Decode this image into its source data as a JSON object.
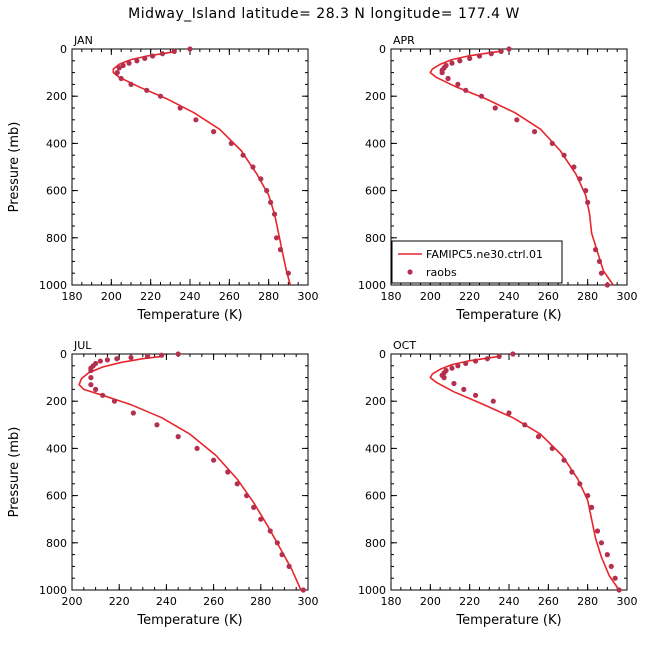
{
  "title": "Midway_Island   latitude= 28.3 N longitude= 177.4 W",
  "colors": {
    "model": "#e8252b",
    "obs": "#b5304f"
  },
  "chart_data": [
    {
      "type": "line",
      "panel": "JAN",
      "xlabel": "Temperature (K)",
      "ylabel": "Pressure (mb)",
      "xlim": [
        180,
        300
      ],
      "ylim": [
        1000,
        0
      ],
      "xticks": [
        180,
        200,
        220,
        240,
        260,
        280,
        300
      ],
      "yticks": [
        0,
        200,
        400,
        600,
        800,
        1000
      ],
      "series": [
        {
          "name": "FAMIPC5.ne30.ctrl.01",
          "style": "line",
          "color": "#e8252b",
          "x": [
            233,
            226,
            218,
            210,
            204,
            201,
            201,
            204,
            214,
            228,
            242,
            255,
            266,
            274,
            280,
            283,
            285,
            287,
            289,
            291
          ],
          "y": [
            10,
            20,
            30,
            45,
            65,
            85,
            100,
            120,
            160,
            210,
            270,
            340,
            430,
            530,
            620,
            700,
            780,
            860,
            940,
            1000
          ]
        },
        {
          "name": "raobs",
          "style": "markers",
          "color": "#b5304f",
          "x": [
            240,
            232,
            226,
            221,
            217,
            213,
            209,
            206,
            204,
            203,
            205,
            210,
            218,
            225,
            235,
            243,
            252,
            261,
            267,
            272,
            276,
            279,
            281,
            283,
            284,
            286,
            290
          ],
          "y": [
            0,
            10,
            20,
            30,
            40,
            50,
            60,
            70,
            80,
            100,
            125,
            150,
            175,
            200,
            250,
            300,
            350,
            400,
            450,
            500,
            550,
            600,
            650,
            700,
            800,
            850,
            950
          ]
        }
      ]
    },
    {
      "type": "line",
      "panel": "APR",
      "xlabel": "Temperature (K)",
      "ylabel": "",
      "xlim": [
        180,
        300
      ],
      "ylim": [
        1000,
        0
      ],
      "xticks": [
        180,
        200,
        220,
        240,
        260,
        280,
        300
      ],
      "yticks": [
        0,
        200,
        400,
        600,
        800,
        1000
      ],
      "legend": {
        "placement": "bottom-left",
        "entries": [
          "FAMIPC5.ne30.ctrl.01",
          "raobs"
        ]
      },
      "series": [
        {
          "name": "FAMIPC5.ne30.ctrl.01",
          "style": "line",
          "color": "#e8252b",
          "x": [
            235,
            227,
            219,
            211,
            205,
            201,
            200,
            203,
            213,
            228,
            243,
            256,
            266,
            274,
            279,
            281,
            282,
            285,
            288,
            293
          ],
          "y": [
            10,
            20,
            30,
            45,
            65,
            85,
            100,
            120,
            160,
            210,
            270,
            340,
            430,
            530,
            620,
            700,
            780,
            860,
            940,
            1000
          ]
        },
        {
          "name": "raobs",
          "style": "markers",
          "color": "#b5304f",
          "x": [
            240,
            236,
            231,
            225,
            220,
            215,
            211,
            208,
            207,
            206,
            206,
            209,
            214,
            218,
            226,
            233,
            244,
            253,
            262,
            268,
            273,
            276,
            279,
            280,
            284,
            286,
            287,
            290
          ],
          "y": [
            0,
            10,
            20,
            30,
            40,
            50,
            60,
            70,
            80,
            90,
            100,
            125,
            150,
            175,
            200,
            250,
            300,
            350,
            400,
            450,
            500,
            550,
            600,
            650,
            850,
            900,
            950,
            1000
          ]
        }
      ]
    },
    {
      "type": "line",
      "panel": "JUL",
      "xlabel": "Temperature (K)",
      "ylabel": "Pressure (mb)",
      "xlim": [
        200,
        300
      ],
      "ylim": [
        1000,
        0
      ],
      "xticks": [
        200,
        220,
        240,
        260,
        280,
        300
      ],
      "yticks": [
        0,
        200,
        400,
        600,
        800,
        1000
      ],
      "series": [
        {
          "name": "FAMIPC5.ne30.ctrl.01",
          "style": "line",
          "color": "#e8252b",
          "x": [
            238,
            230,
            221,
            213,
            207,
            204,
            203,
            205,
            213,
            225,
            238,
            250,
            261,
            270,
            277,
            283,
            288,
            293,
            297
          ],
          "y": [
            10,
            20,
            35,
            55,
            80,
            105,
            130,
            150,
            175,
            215,
            270,
            340,
            430,
            530,
            630,
            730,
            820,
            910,
            1000
          ]
        },
        {
          "name": "raobs",
          "style": "markers",
          "color": "#b5304f",
          "x": [
            245,
            238,
            232,
            225,
            219,
            215,
            212,
            210,
            209,
            208,
            208,
            208,
            208,
            210,
            213,
            218,
            226,
            236,
            245,
            253,
            260,
            266,
            270,
            274,
            277,
            280,
            284,
            287,
            289,
            292,
            298
          ],
          "y": [
            0,
            5,
            10,
            15,
            20,
            25,
            30,
            40,
            50,
            60,
            70,
            100,
            130,
            150,
            175,
            200,
            250,
            300,
            350,
            400,
            450,
            500,
            550,
            600,
            650,
            700,
            750,
            800,
            850,
            900,
            1000
          ]
        }
      ]
    },
    {
      "type": "line",
      "panel": "OCT",
      "xlabel": "Temperature (K)",
      "ylabel": "",
      "xlim": [
        180,
        300
      ],
      "ylim": [
        1000,
        0
      ],
      "xticks": [
        180,
        200,
        220,
        240,
        260,
        280,
        300
      ],
      "yticks": [
        0,
        200,
        400,
        600,
        800,
        1000
      ],
      "series": [
        {
          "name": "FAMIPC5.ne30.ctrl.01",
          "style": "line",
          "color": "#e8252b",
          "x": [
            235,
            227,
            219,
            211,
            205,
            201,
            200,
            203,
            212,
            226,
            242,
            256,
            267,
            275,
            280,
            282,
            284,
            287,
            291,
            296
          ],
          "y": [
            10,
            20,
            30,
            45,
            65,
            85,
            100,
            120,
            160,
            210,
            270,
            340,
            430,
            530,
            620,
            700,
            780,
            860,
            940,
            1000
          ]
        },
        {
          "name": "raobs",
          "style": "markers",
          "color": "#b5304f",
          "x": [
            242,
            235,
            229,
            223,
            218,
            214,
            211,
            208,
            207,
            206,
            207,
            212,
            217,
            223,
            232,
            240,
            248,
            255,
            262,
            268,
            272,
            276,
            280,
            282,
            285,
            287,
            290,
            292,
            294,
            296
          ],
          "y": [
            0,
            10,
            20,
            30,
            40,
            50,
            60,
            70,
            80,
            90,
            100,
            125,
            150,
            175,
            200,
            250,
            300,
            350,
            400,
            450,
            500,
            550,
            600,
            650,
            750,
            800,
            850,
            900,
            950,
            1000
          ]
        }
      ]
    }
  ]
}
